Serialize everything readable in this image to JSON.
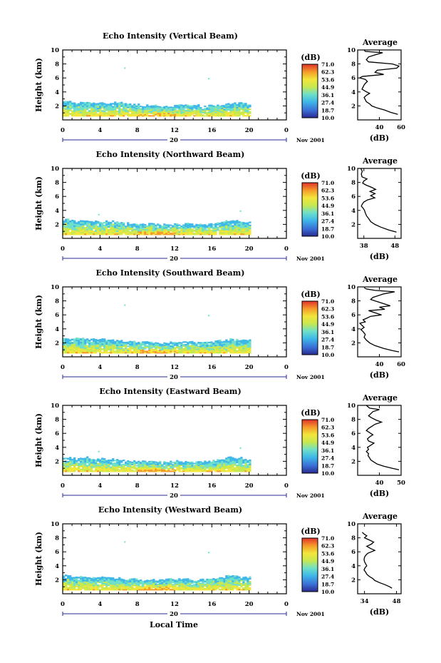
{
  "chart_data": [
    {
      "type": "heatmap",
      "title": "Echo Intensity (Vertical Beam)",
      "ylabel": "Height (km)",
      "y_ticks": [
        "10",
        "8",
        "6",
        "4",
        "2"
      ],
      "ylim": [
        0,
        10
      ],
      "x_ticks": [
        "0",
        "4",
        "8",
        "12",
        "16",
        "20",
        "0"
      ],
      "xlim": [
        0,
        24
      ],
      "date_label": "20",
      "date_suffix": "Nov 2001",
      "echo_top_km": [
        2.6,
        2.5,
        2.6,
        2.5,
        2.4,
        2.4,
        2.5,
        2.3,
        2.2,
        2.1,
        2.2,
        2.1,
        2.0,
        2.1,
        2.2,
        2.1,
        2.0,
        2.1,
        2.2,
        2.3,
        2.4,
        2.3
      ],
      "colorbar": {
        "unit": "(dB)",
        "labels": [
          "71.0",
          "62.3",
          "53.6",
          "44.9",
          "36.1",
          "27.4",
          "18.7",
          "10.0"
        ],
        "min": 10.0,
        "max": 71.0
      },
      "average_profile": {
        "title": "Average",
        "xlabel": "(dB)",
        "x_ticks": [
          "40",
          "60"
        ],
        "xlim": [
          20,
          60
        ],
        "y_ticks": [
          "10",
          "8",
          "6",
          "4",
          "2"
        ],
        "ylim": [
          0,
          10
        ],
        "points": [
          [
            26.0,
            10.0
          ],
          [
            27.0,
            9.8
          ],
          [
            43.0,
            9.6
          ],
          [
            36.0,
            9.3
          ],
          [
            30.0,
            9.0
          ],
          [
            28.0,
            8.6
          ],
          [
            30.0,
            8.3
          ],
          [
            52.0,
            8.0
          ],
          [
            58.0,
            7.7
          ],
          [
            56.0,
            7.4
          ],
          [
            38.0,
            7.1
          ],
          [
            36.0,
            6.8
          ],
          [
            44.0,
            6.5
          ],
          [
            24.0,
            6.2
          ],
          [
            22.0,
            6.0
          ],
          [
            27.0,
            5.8
          ],
          [
            29.0,
            5.5
          ],
          [
            27.0,
            5.2
          ],
          [
            26.0,
            5.0
          ],
          [
            25.0,
            4.7
          ],
          [
            24.0,
            4.4
          ],
          [
            27.0,
            4.1
          ],
          [
            31.0,
            3.8
          ],
          [
            28.0,
            3.5
          ],
          [
            26.0,
            3.2
          ],
          [
            27.0,
            2.9
          ],
          [
            28.0,
            2.6
          ],
          [
            31.0,
            2.3
          ],
          [
            33.0,
            2.0
          ],
          [
            38.0,
            1.7
          ],
          [
            45.0,
            1.4
          ],
          [
            50.0,
            1.1
          ],
          [
            57.0,
            0.8
          ]
        ]
      }
    },
    {
      "type": "heatmap",
      "title": "Echo Intensity (Northward Beam)",
      "ylabel": "Height (km)",
      "y_ticks": [
        "10",
        "8",
        "6",
        "4",
        "2"
      ],
      "ylim": [
        0,
        10
      ],
      "x_ticks": [
        "0",
        "4",
        "8",
        "12",
        "16",
        "20",
        "0"
      ],
      "xlim": [
        0,
        24
      ],
      "date_label": "20",
      "date_suffix": "Nov 2001",
      "echo_top_km": [
        2.7,
        2.6,
        2.6,
        2.5,
        2.4,
        2.5,
        2.3,
        2.2,
        2.1,
        2.0,
        2.1,
        2.0,
        2.0,
        2.1,
        2.1,
        2.0,
        2.0,
        2.1,
        2.3,
        2.5,
        2.5,
        2.3
      ],
      "colorbar": {
        "unit": "(dB)",
        "labels": [
          "71.0",
          "62.3",
          "53.6",
          "44.9",
          "36.1",
          "27.4",
          "18.7",
          "10.0"
        ],
        "min": 10.0,
        "max": 71.0
      },
      "average_profile": {
        "title": "Average",
        "xlabel": "(dB)",
        "x_ticks": [
          "38",
          "48"
        ],
        "xlim": [
          36,
          50
        ],
        "y_ticks": [
          "10",
          "8",
          "6",
          "4",
          "2"
        ],
        "ylim": [
          0,
          10
        ],
        "points": [
          [
            37.0,
            10.0
          ],
          [
            37.5,
            9.6
          ],
          [
            37.2,
            9.2
          ],
          [
            37.4,
            8.8
          ],
          [
            39.0,
            8.5
          ],
          [
            38.0,
            8.2
          ],
          [
            37.6,
            7.9
          ],
          [
            38.8,
            7.6
          ],
          [
            40.5,
            7.3
          ],
          [
            41.8,
            7.0
          ],
          [
            40.0,
            6.7
          ],
          [
            41.6,
            6.4
          ],
          [
            40.2,
            6.1
          ],
          [
            41.5,
            5.8
          ],
          [
            39.2,
            5.5
          ],
          [
            38.0,
            5.2
          ],
          [
            37.5,
            4.9
          ],
          [
            37.2,
            4.6
          ],
          [
            37.8,
            4.3
          ],
          [
            38.2,
            4.0
          ],
          [
            38.5,
            3.6
          ],
          [
            38.9,
            3.2
          ],
          [
            39.6,
            2.8
          ],
          [
            40.2,
            2.4
          ],
          [
            41.5,
            2.0
          ],
          [
            43.5,
            1.6
          ],
          [
            46.0,
            1.2
          ],
          [
            48.5,
            0.9
          ]
        ]
      }
    },
    {
      "type": "heatmap",
      "title": "Echo Intensity (Southward Beam)",
      "ylabel": "Height (km)",
      "y_ticks": [
        "10",
        "8",
        "6",
        "4",
        "2"
      ],
      "ylim": [
        0,
        10
      ],
      "x_ticks": [
        "0",
        "4",
        "8",
        "12",
        "16",
        "20",
        "0"
      ],
      "xlim": [
        0,
        24
      ],
      "date_label": "20",
      "date_suffix": "Nov 2001",
      "echo_top_km": [
        2.6,
        2.7,
        2.6,
        2.5,
        2.5,
        2.4,
        2.3,
        2.2,
        2.2,
        2.1,
        2.1,
        2.0,
        2.1,
        2.1,
        2.2,
        2.1,
        2.1,
        2.2,
        2.3,
        2.6,
        2.5,
        2.4
      ],
      "colorbar": {
        "unit": "(dB)",
        "labels": [
          "71.0",
          "62.3",
          "53.6",
          "44.9",
          "36.1",
          "27.4",
          "18.7",
          "10.0"
        ],
        "min": 10.0,
        "max": 71.0
      },
      "average_profile": {
        "title": "Average",
        "xlabel": "(dB)",
        "x_ticks": [
          "40",
          "60"
        ],
        "xlim": [
          20,
          60
        ],
        "y_ticks": [
          "10",
          "8",
          "6",
          "4",
          "2"
        ],
        "ylim": [
          0,
          10
        ],
        "points": [
          [
            26.0,
            9.9
          ],
          [
            28.0,
            9.7
          ],
          [
            36.0,
            9.5
          ],
          [
            54.0,
            9.3
          ],
          [
            44.0,
            9.0
          ],
          [
            38.0,
            8.7
          ],
          [
            34.0,
            8.5
          ],
          [
            32.0,
            8.2
          ],
          [
            38.0,
            7.9
          ],
          [
            44.0,
            7.6
          ],
          [
            50.0,
            7.3
          ],
          [
            40.0,
            7.1
          ],
          [
            45.0,
            6.8
          ],
          [
            30.0,
            6.6
          ],
          [
            36.0,
            6.3
          ],
          [
            42.0,
            6.0
          ],
          [
            32.0,
            5.8
          ],
          [
            28.0,
            5.5
          ],
          [
            25.0,
            5.3
          ],
          [
            27.0,
            5.0
          ],
          [
            22.0,
            4.8
          ],
          [
            24.0,
            4.5
          ],
          [
            26.0,
            4.2
          ],
          [
            23.0,
            3.9
          ],
          [
            25.0,
            3.6
          ],
          [
            27.0,
            3.2
          ],
          [
            26.0,
            2.8
          ],
          [
            28.0,
            2.4
          ],
          [
            31.0,
            2.0
          ],
          [
            36.0,
            1.6
          ],
          [
            44.0,
            1.2
          ],
          [
            52.0,
            0.9
          ],
          [
            58.0,
            0.7
          ]
        ]
      }
    },
    {
      "type": "heatmap",
      "title": "Echo Intensity (Eastward Beam)",
      "ylabel": "Height (km)",
      "y_ticks": [
        "10",
        "8",
        "6",
        "4",
        "2"
      ],
      "ylim": [
        0,
        10
      ],
      "x_ticks": [
        "0",
        "4",
        "8",
        "12",
        "16",
        "20",
        "0"
      ],
      "xlim": [
        0,
        24
      ],
      "date_label": "20",
      "date_suffix": "Nov 2001",
      "echo_top_km": [
        2.6,
        2.5,
        2.6,
        2.4,
        2.4,
        2.3,
        2.2,
        2.1,
        2.0,
        2.0,
        2.0,
        1.9,
        2.0,
        2.1,
        2.0,
        1.9,
        2.0,
        2.1,
        2.2,
        2.6,
        2.5,
        2.3
      ],
      "colorbar": {
        "unit": "(dB)",
        "labels": [
          "71.0",
          "62.3",
          "53.6",
          "44.9",
          "36.1",
          "27.4",
          "18.7",
          "10.0"
        ],
        "min": 10.0,
        "max": 71.0
      },
      "average_profile": {
        "title": "Average",
        "xlabel": "(dB)",
        "x_ticks": [
          "40",
          "50"
        ],
        "xlim": [
          30,
          50
        ],
        "y_ticks": [
          "10",
          "8",
          "6",
          "4",
          "2"
        ],
        "ylim": [
          0,
          10
        ],
        "points": [
          [
            34.0,
            10.0
          ],
          [
            35.5,
            9.6
          ],
          [
            40.0,
            9.4
          ],
          [
            37.0,
            9.1
          ],
          [
            36.0,
            8.8
          ],
          [
            35.0,
            8.5
          ],
          [
            36.5,
            8.2
          ],
          [
            38.5,
            7.9
          ],
          [
            41.0,
            7.6
          ],
          [
            38.0,
            7.3
          ],
          [
            36.5,
            7.0
          ],
          [
            35.0,
            6.7
          ],
          [
            34.0,
            6.4
          ],
          [
            35.5,
            6.1
          ],
          [
            37.0,
            5.8
          ],
          [
            35.5,
            5.5
          ],
          [
            34.5,
            5.2
          ],
          [
            35.0,
            4.9
          ],
          [
            37.5,
            4.6
          ],
          [
            36.0,
            4.3
          ],
          [
            34.5,
            4.0
          ],
          [
            35.0,
            3.7
          ],
          [
            34.0,
            3.4
          ],
          [
            35.0,
            3.1
          ],
          [
            34.8,
            2.8
          ],
          [
            35.5,
            2.5
          ],
          [
            36.0,
            2.2
          ],
          [
            37.5,
            1.9
          ],
          [
            39.0,
            1.6
          ],
          [
            42.0,
            1.3
          ],
          [
            46.0,
            1.0
          ],
          [
            49.0,
            0.8
          ]
        ]
      }
    },
    {
      "type": "heatmap",
      "title": "Echo Intensity (Westward Beam)",
      "ylabel": "Height (km)",
      "y_ticks": [
        "10",
        "8",
        "6",
        "4",
        "2"
      ],
      "ylim": [
        0,
        10
      ],
      "x_ticks": [
        "0",
        "4",
        "8",
        "12",
        "16",
        "20",
        "0"
      ],
      "xlim": [
        0,
        24
      ],
      "date_label": "20",
      "date_suffix": "Nov 2001",
      "xlabel": "Local Time",
      "echo_top_km": [
        2.7,
        2.5,
        2.5,
        2.4,
        2.4,
        2.4,
        2.3,
        2.1,
        2.1,
        2.0,
        2.0,
        2.0,
        2.1,
        2.1,
        2.1,
        2.0,
        2.1,
        2.1,
        2.3,
        2.6,
        2.5,
        2.4
      ],
      "colorbar": {
        "unit": "(dB)",
        "labels": [
          "71.0",
          "62.3",
          "53.6",
          "44.9",
          "36.1",
          "27.4",
          "18.7",
          "10.0"
        ],
        "min": 10.0,
        "max": 71.0
      },
      "average_profile": {
        "title": "Average",
        "xlabel": "(dB)",
        "x_ticks": [
          "34",
          "48"
        ],
        "xlim": [
          31,
          50
        ],
        "y_ticks": [
          "10",
          "8",
          "6",
          "4",
          "2"
        ],
        "ylim": [
          0,
          10
        ],
        "points": [
          [
            33.0,
            8.8
          ],
          [
            34.0,
            8.5
          ],
          [
            35.0,
            8.3
          ],
          [
            34.0,
            8.0
          ],
          [
            36.0,
            7.7
          ],
          [
            38.0,
            7.4
          ],
          [
            37.0,
            7.1
          ],
          [
            35.0,
            6.8
          ],
          [
            36.5,
            6.5
          ],
          [
            38.5,
            6.2
          ],
          [
            37.0,
            6.0
          ],
          [
            35.5,
            5.8
          ],
          [
            34.5,
            5.5
          ],
          [
            34.0,
            5.2
          ],
          [
            33.8,
            4.9
          ],
          [
            34.0,
            4.6
          ],
          [
            34.5,
            4.3
          ],
          [
            35.0,
            4.0
          ],
          [
            34.2,
            3.7
          ],
          [
            33.8,
            3.4
          ],
          [
            34.5,
            3.1
          ],
          [
            35.0,
            2.8
          ],
          [
            36.0,
            2.5
          ],
          [
            37.5,
            2.2
          ],
          [
            38.5,
            1.9
          ],
          [
            40.5,
            1.6
          ],
          [
            43.0,
            1.3
          ],
          [
            45.0,
            1.0
          ],
          [
            46.0,
            0.8
          ]
        ]
      }
    }
  ],
  "colors": {
    "cmap": [
      "#2a2a8f",
      "#3a6fd8",
      "#3fb8e8",
      "#6fe0c8",
      "#c8e850",
      "#f2e63a",
      "#f59a2a",
      "#e0322a"
    ]
  }
}
